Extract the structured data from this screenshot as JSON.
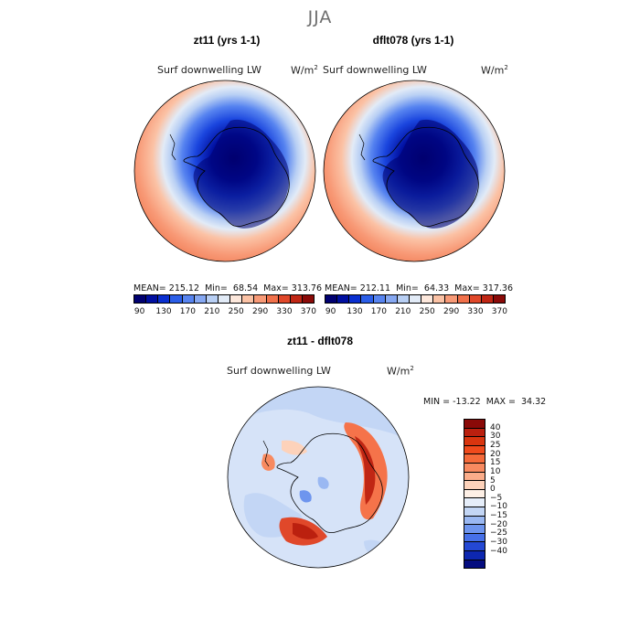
{
  "figure": {
    "season_title": "JJA",
    "variable": "Surf downwelling LW",
    "units_base": "W/m",
    "units_exp": "2"
  },
  "panels": [
    {
      "title": "zt11 (yrs 1-1)",
      "stats": "MEAN= 215.12  Min=  68.54  Max= 313.76"
    },
    {
      "title": "dflt078 (yrs 1-1)",
      "stats": "MEAN= 212.11  Min=  64.33  Max= 317.36"
    }
  ],
  "colorbar_top": {
    "colors": [
      "#000070",
      "#000fa0",
      "#0a2fd0",
      "#2b5ee8",
      "#5784f0",
      "#86a8f2",
      "#b8cff4",
      "#e2ebf7",
      "#fde8dc",
      "#fbc2a5",
      "#f89a77",
      "#f1714b",
      "#e0482a",
      "#c02614",
      "#8a0a08"
    ],
    "labels": [
      "90",
      "130",
      "170",
      "210",
      "250",
      "290",
      "330",
      "370"
    ]
  },
  "difference": {
    "title": "zt11 - dflt078",
    "stats": "MIN = -13.22  MAX =  34.32",
    "colors": [
      "#8a0a08",
      "#bb200f",
      "#d9350f",
      "#f04a1c",
      "#f56a3a",
      "#f88a60",
      "#fbad8a",
      "#fdd2ba",
      "#fef0e6",
      "#e6eefa",
      "#c3d6f5",
      "#9ab8f2",
      "#6e95ee",
      "#4670e8",
      "#2448d4",
      "#0d27b0",
      "#050d80"
    ],
    "labels": [
      "40",
      "30",
      "25",
      "20",
      "15",
      "10",
      "5",
      "0",
      "−5",
      "−10",
      "−15",
      "−20",
      "−25",
      "−30",
      "−40"
    ]
  }
}
